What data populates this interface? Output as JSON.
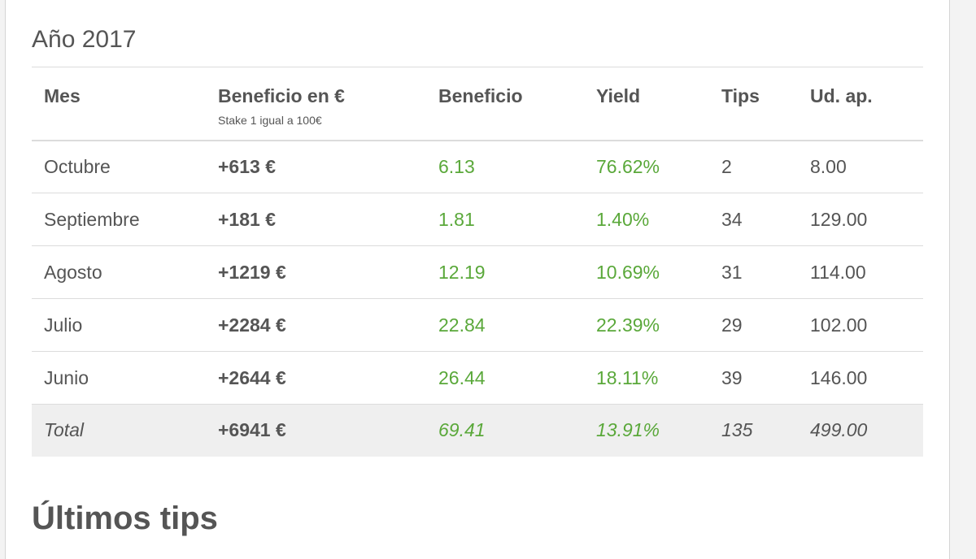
{
  "year_title": "Año 2017",
  "table": {
    "headers": {
      "mes": "Mes",
      "beneficio_eur": "Beneficio en €",
      "beneficio_eur_sub": "Stake 1 igual a 100€",
      "beneficio": "Beneficio",
      "yield": "Yield",
      "tips": "Tips",
      "ud_ap": "Ud. ap."
    },
    "rows": [
      {
        "mes": "Octubre",
        "beneficio_eur": "+613 €",
        "beneficio": "6.13",
        "yield": "76.62%",
        "tips": "2",
        "ud_ap": "8.00"
      },
      {
        "mes": "Septiembre",
        "beneficio_eur": "+181 €",
        "beneficio": "1.81",
        "yield": "1.40%",
        "tips": "34",
        "ud_ap": "129.00"
      },
      {
        "mes": "Agosto",
        "beneficio_eur": "+1219 €",
        "beneficio": "12.19",
        "yield": "10.69%",
        "tips": "31",
        "ud_ap": "114.00"
      },
      {
        "mes": "Julio",
        "beneficio_eur": "+2284 €",
        "beneficio": "22.84",
        "yield": "22.39%",
        "tips": "29",
        "ud_ap": "102.00"
      },
      {
        "mes": "Junio",
        "beneficio_eur": "+2644 €",
        "beneficio": "26.44",
        "yield": "18.11%",
        "tips": "39",
        "ud_ap": "146.00"
      }
    ],
    "total": {
      "mes": "Total",
      "beneficio_eur": "+6941 €",
      "beneficio": "69.41",
      "yield": "13.91%",
      "tips": "135",
      "ud_ap": "499.00"
    }
  },
  "section_title": "Últimos tips",
  "colors": {
    "positive": "#5aa83a",
    "text": "#555555",
    "total_row_bg": "#efefef",
    "divider": "#dcdcdc"
  }
}
